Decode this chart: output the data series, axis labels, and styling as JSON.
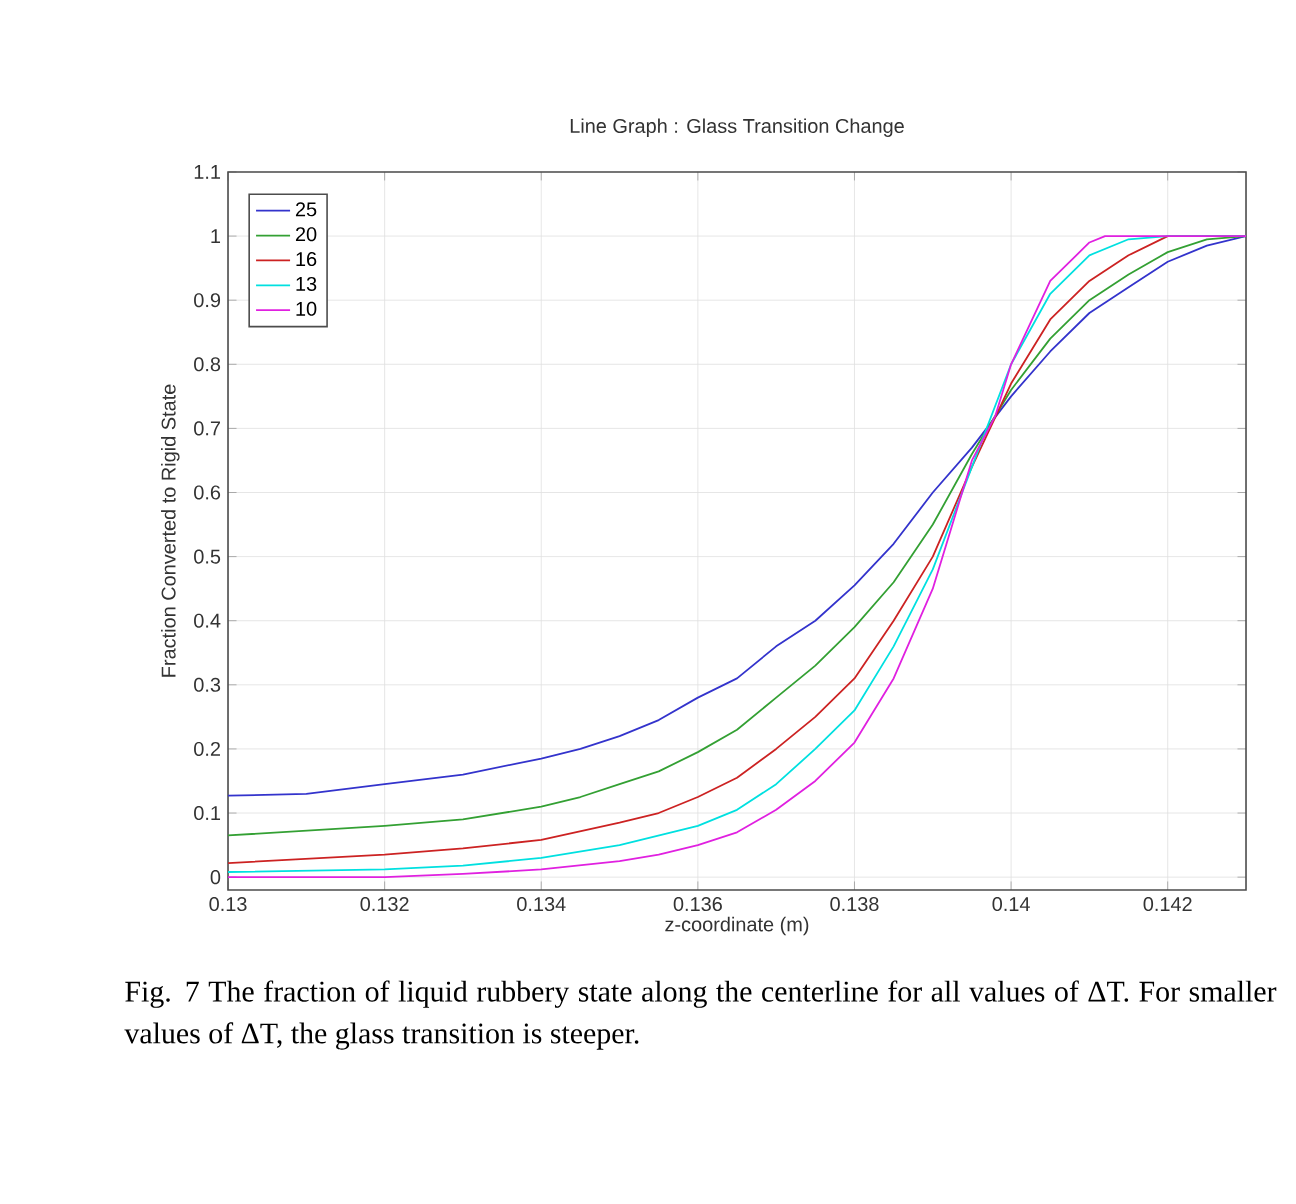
{
  "chart_data": {
    "type": "line",
    "title": "Line Graph : Glass Transition Change",
    "xlabel": "z-coordinate (m)",
    "ylabel": "Fraction Converted to Rigid State",
    "xlim": [
      0.13,
      0.143
    ],
    "ylim": [
      -0.02,
      1.1
    ],
    "xticks": [
      0.13,
      0.132,
      0.134,
      0.136,
      0.138,
      0.14,
      0.142
    ],
    "yticks": [
      0,
      0.1,
      0.2,
      0.3,
      0.4,
      0.5,
      0.6,
      0.7,
      0.8,
      0.9,
      1,
      1.1
    ],
    "grid": true,
    "legend": "top left",
    "series": [
      {
        "name": "25",
        "color": "#3333cc",
        "x": [
          0.13,
          0.131,
          0.132,
          0.133,
          0.134,
          0.1345,
          0.135,
          0.1355,
          0.136,
          0.1365,
          0.137,
          0.1375,
          0.138,
          0.1385,
          0.139,
          0.1395,
          0.14,
          0.1405,
          0.141,
          0.1415,
          0.142,
          0.1425,
          0.143
        ],
        "values": [
          0.127,
          0.13,
          0.145,
          0.16,
          0.185,
          0.2,
          0.22,
          0.245,
          0.28,
          0.31,
          0.36,
          0.4,
          0.455,
          0.52,
          0.6,
          0.67,
          0.75,
          0.82,
          0.88,
          0.92,
          0.96,
          0.985,
          1.0
        ]
      },
      {
        "name": "20",
        "color": "#33a033",
        "x": [
          0.13,
          0.132,
          0.133,
          0.134,
          0.1345,
          0.135,
          0.1355,
          0.136,
          0.1365,
          0.137,
          0.1375,
          0.138,
          0.1385,
          0.139,
          0.1395,
          0.14,
          0.1405,
          0.141,
          0.1415,
          0.142,
          0.1425,
          0.143
        ],
        "values": [
          0.065,
          0.08,
          0.09,
          0.11,
          0.125,
          0.145,
          0.165,
          0.195,
          0.23,
          0.28,
          0.33,
          0.39,
          0.46,
          0.55,
          0.66,
          0.76,
          0.84,
          0.9,
          0.94,
          0.975,
          0.995,
          1.0
        ]
      },
      {
        "name": "16",
        "color": "#cc2222",
        "x": [
          0.13,
          0.132,
          0.133,
          0.134,
          0.135,
          0.1355,
          0.136,
          0.1365,
          0.137,
          0.1375,
          0.138,
          0.1385,
          0.139,
          0.1395,
          0.14,
          0.1405,
          0.141,
          0.1415,
          0.142,
          0.143
        ],
        "values": [
          0.022,
          0.035,
          0.045,
          0.058,
          0.085,
          0.1,
          0.125,
          0.155,
          0.2,
          0.25,
          0.31,
          0.4,
          0.5,
          0.64,
          0.77,
          0.87,
          0.93,
          0.97,
          1.0,
          1.0
        ]
      },
      {
        "name": "13",
        "color": "#00e0e0",
        "x": [
          0.13,
          0.132,
          0.133,
          0.134,
          0.135,
          0.136,
          0.1365,
          0.137,
          0.1375,
          0.138,
          0.1385,
          0.139,
          0.1395,
          0.14,
          0.1405,
          0.141,
          0.1415,
          0.142,
          0.143
        ],
        "values": [
          0.008,
          0.012,
          0.018,
          0.03,
          0.05,
          0.08,
          0.105,
          0.145,
          0.2,
          0.26,
          0.36,
          0.48,
          0.64,
          0.8,
          0.91,
          0.97,
          0.995,
          1.0,
          1.0
        ]
      },
      {
        "name": "10",
        "color": "#e020e0",
        "x": [
          0.13,
          0.132,
          0.133,
          0.134,
          0.135,
          0.1355,
          0.136,
          0.1365,
          0.137,
          0.1375,
          0.138,
          0.1385,
          0.139,
          0.1395,
          0.1398,
          0.14,
          0.1405,
          0.141,
          0.1412,
          0.143
        ],
        "values": [
          0.0,
          0.0,
          0.005,
          0.012,
          0.025,
          0.035,
          0.05,
          0.07,
          0.105,
          0.15,
          0.21,
          0.31,
          0.45,
          0.65,
          0.72,
          0.8,
          0.93,
          0.99,
          1.0,
          1.0
        ]
      }
    ],
    "annotations": [
      "Fig. 7 The fraction of liquid rubbery state along the centerline for all values of ΔT. For smaller values of ΔT, the glass transition is steeper."
    ]
  }
}
